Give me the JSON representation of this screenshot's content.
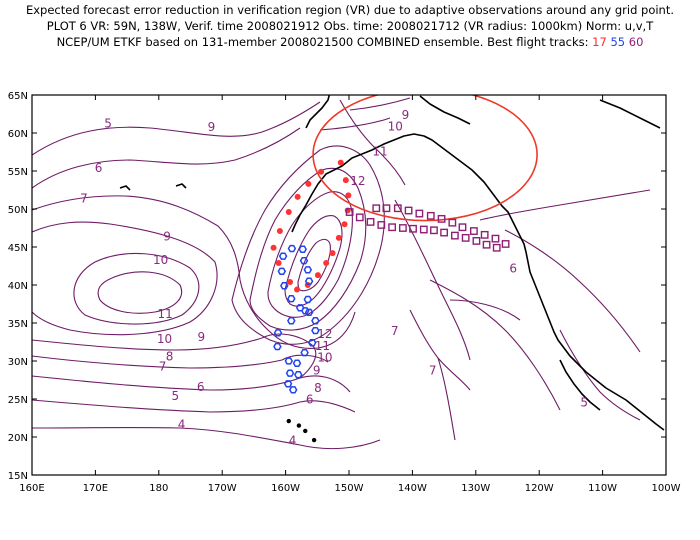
{
  "title": {
    "line1": "Expected forecast error reduction in verification region (VR) due to adaptive observations around any grid point.",
    "line2": "PLOT 6 VR: 59N, 138W, Verif. time 2008021912 Obs. time: 2008021712 (VR radius: 1000km) Norm: u,v,T",
    "line3_prefix": "NCEP/UM ETKF based on 131-member 2008021500 COMBINED ensemble.  Best flight tracks:",
    "track_red": "17",
    "track_blue": "55",
    "track_purple": "60"
  },
  "axes": {
    "x_labels": [
      "160E",
      "170E",
      "180",
      "170W",
      "160W",
      "150W",
      "140W",
      "130W",
      "120W",
      "110W",
      "100W"
    ],
    "y_labels": [
      "65N",
      "60N",
      "55N",
      "50N",
      "45N",
      "40N",
      "35N",
      "30N",
      "25N",
      "20N",
      "15N"
    ]
  },
  "contour_labels": [
    {
      "text": "5",
      "lon": 172,
      "lat": 61.2
    },
    {
      "text": "6",
      "lon": 170.5,
      "lat": 55.3
    },
    {
      "text": "7",
      "lon": 168.2,
      "lat": 51.3
    },
    {
      "text": "9",
      "lon": -178.7,
      "lat": 46.3
    },
    {
      "text": "10",
      "lon": -179.7,
      "lat": 43.2
    },
    {
      "text": "11",
      "lon": -179,
      "lat": 36.1
    },
    {
      "text": "10",
      "lon": -179.1,
      "lat": 32.8
    },
    {
      "text": "9",
      "lon": -173.3,
      "lat": 33.1
    },
    {
      "text": "8",
      "lon": -178.3,
      "lat": 30.5
    },
    {
      "text": "7",
      "lon": -179.4,
      "lat": 29.2
    },
    {
      "text": "6",
      "lon": -173.4,
      "lat": 26.5
    },
    {
      "text": "5",
      "lon": -177.4,
      "lat": 25.3
    },
    {
      "text": "4",
      "lon": -176.4,
      "lat": 21.6
    },
    {
      "text": "4",
      "lon": -158.9,
      "lat": 19.5
    },
    {
      "text": "9",
      "lon": -171.7,
      "lat": 60.7
    },
    {
      "text": "9",
      "lon": -141.1,
      "lat": 62.3
    },
    {
      "text": "10",
      "lon": -142.7,
      "lat": 60.8
    },
    {
      "text": "11",
      "lon": -145.1,
      "lat": 57.5
    },
    {
      "text": "12",
      "lon": -148.6,
      "lat": 53.6
    },
    {
      "text": "12",
      "lon": -153.8,
      "lat": 33.5
    },
    {
      "text": "11",
      "lon": -154.2,
      "lat": 31.9
    },
    {
      "text": "10",
      "lon": -153.8,
      "lat": 30.4
    },
    {
      "text": "9",
      "lon": -155.1,
      "lat": 28.7
    },
    {
      "text": "6",
      "lon": -156.2,
      "lat": 24.9
    },
    {
      "text": "8",
      "lon": -154.9,
      "lat": 26.4
    },
    {
      "text": "7",
      "lon": -142.8,
      "lat": 33.9
    },
    {
      "text": "7",
      "lon": -136.8,
      "lat": 28.7
    },
    {
      "text": "6",
      "lon": -124.1,
      "lat": 42.1
    },
    {
      "text": "5",
      "lon": -112.9,
      "lat": 24.5
    }
  ],
  "contour_levels": [
    "4",
    "5",
    "6",
    "7",
    "8",
    "9",
    "10",
    "11",
    "12"
  ],
  "verification_region": {
    "lat": 59,
    "lon": -138,
    "radius_km": 1000
  },
  "tracks": {
    "red": {
      "color": "#ff3333",
      "marker": "dot",
      "points": [
        [
          -151.3,
          56.1
        ],
        [
          -154.4,
          54.9
        ],
        [
          -156.4,
          53.3
        ],
        [
          -158.1,
          51.6
        ],
        [
          -159.5,
          49.6
        ],
        [
          -160.9,
          47.1
        ],
        [
          -161.9,
          44.9
        ],
        [
          -161.1,
          42.9
        ],
        [
          -159.3,
          40.4
        ],
        [
          -158.2,
          39.4
        ],
        [
          -156.5,
          40.0
        ],
        [
          -154.9,
          41.3
        ],
        [
          -153.6,
          42.9
        ],
        [
          -152.6,
          44.2
        ],
        [
          -151.6,
          46.2
        ],
        [
          -150.7,
          48.0
        ],
        [
          -150.2,
          49.8
        ],
        [
          -150.1,
          51.8
        ],
        [
          -150.5,
          53.8
        ]
      ]
    },
    "blue": {
      "color": "#2244ee",
      "marker": "hexagon",
      "points": [
        [
          -157.3,
          44.7
        ],
        [
          -159.0,
          44.8
        ],
        [
          -160.4,
          43.8
        ],
        [
          -160.6,
          41.8
        ],
        [
          -160.2,
          39.9
        ],
        [
          -159.1,
          38.2
        ],
        [
          -157.7,
          37.0
        ],
        [
          -156.3,
          36.4
        ],
        [
          -155.3,
          35.3
        ],
        [
          -155.3,
          34.0
        ],
        [
          -155.8,
          32.4
        ],
        [
          -157.0,
          31.1
        ],
        [
          -158.2,
          29.7
        ],
        [
          -159.3,
          28.4
        ],
        [
          -159.6,
          27.0
        ],
        [
          -158.8,
          26.2
        ],
        [
          -158.0,
          28.2
        ],
        [
          -159.5,
          30.0
        ],
        [
          -161.3,
          31.9
        ],
        [
          -161.2,
          33.7
        ],
        [
          -159.1,
          35.3
        ],
        [
          -156.9,
          36.6
        ],
        [
          -156.5,
          38.1
        ],
        [
          -156.3,
          40.5
        ],
        [
          -156.5,
          42.0
        ],
        [
          -157.1,
          43.2
        ]
      ]
    },
    "purple": {
      "color": "#8e1f74",
      "marker": "square",
      "points": [
        [
          -145.7,
          50.1
        ],
        [
          -144.1,
          50.1
        ],
        [
          -142.3,
          50.1
        ],
        [
          -140.6,
          49.8
        ],
        [
          -138.9,
          49.4
        ],
        [
          -137.1,
          49.1
        ],
        [
          -135.4,
          48.7
        ],
        [
          -133.7,
          48.2
        ],
        [
          -132.1,
          47.6
        ],
        [
          -130.3,
          47.1
        ],
        [
          -128.6,
          46.6
        ],
        [
          -126.9,
          46.1
        ],
        [
          -125.3,
          45.4
        ],
        [
          -126.7,
          44.9
        ],
        [
          -128.3,
          45.3
        ],
        [
          -129.9,
          45.8
        ],
        [
          -131.6,
          46.2
        ],
        [
          -133.3,
          46.5
        ],
        [
          -135.0,
          46.9
        ],
        [
          -136.6,
          47.2
        ],
        [
          -138.2,
          47.3
        ],
        [
          -139.9,
          47.4
        ],
        [
          -141.5,
          47.5
        ],
        [
          -143.2,
          47.6
        ],
        [
          -144.9,
          47.9
        ],
        [
          -146.6,
          48.3
        ],
        [
          -148.3,
          48.9
        ],
        [
          -149.9,
          49.6
        ]
      ]
    }
  },
  "colors": {
    "contour": "#6e1c66",
    "contour_label": "#8a2a7e",
    "coast": "#000000",
    "vr_circle": "#ee3a2a"
  }
}
